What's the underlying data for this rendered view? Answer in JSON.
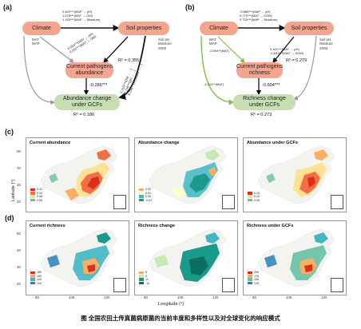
{
  "panel_a": {
    "letter": "(a)",
    "climate": "Climate",
    "soil": "Soil properties",
    "current": "Current pathogens\nabundance",
    "change": "Abundance change\nunder GCFs",
    "climate_side": "MAT\nMAP",
    "soil_side": "Soil pH\nMoisture\nSOM",
    "coef_top": "0.402***(MAP → pH)\n1.676***(MAT → OM)\n1.155***(MAP → Moisture)",
    "coef_left": "0.534***(MAT → pH)\n0.291***(MAT → OM)",
    "coef_right": "0.315***(OM → ...)\n-0.150***(pH → ...)\n-0.298***(Moisture → ...)",
    "coef_mid": "-0.286***",
    "r2_current": "R² = 0.355",
    "r2_change": "R² = 0.186"
  },
  "panel_b": {
    "letter": "(b)",
    "climate": "Climate",
    "soil": "Soil properties",
    "current": "Current pathogens\nrichness",
    "change": "Richness change\nunder GCFs",
    "climate_side": "MAT\nMAP",
    "soil_side": "Soil pH\nMoisture\nSOM",
    "coef_top": "-0.885***(MAP → pH)\n0.770***(MAT → SOM)\n0.733***(MAP → Moisture)",
    "coef_soil_cur": "0.401***(MAT → pH)\n-0.831***(MAT → SOM)",
    "coef_clim_cur": "-0.594**(MAT)",
    "coef_clim_chg": "-0.210**(MAT)",
    "coef_mid": "-0.604***",
    "r2_current": "R² = 0.279",
    "r2_change": "R² = 0.273"
  },
  "panel_c": {
    "letter": "(c)",
    "maps": [
      {
        "title": "Current abundance",
        "legend": [
          "0.12",
          "0.10",
          "0.08",
          "0.06"
        ]
      },
      {
        "title": "Abundance change",
        "legend": [
          "0.02",
          "0.01",
          "0.00",
          "-0.01"
        ]
      },
      {
        "title": "Abundance under GCFs",
        "legend": [
          "0.15",
          "0.10",
          "0.05"
        ]
      }
    ]
  },
  "panel_d": {
    "letter": "(d)",
    "maps": [
      {
        "title": "Current richness",
        "legend": [
          "180",
          "160",
          "140",
          "120"
        ]
      },
      {
        "title": "Richness change",
        "legend": [
          "5",
          "0",
          "-5",
          "-10"
        ]
      },
      {
        "title": "Richness under GCFs",
        "legend": [
          "200",
          "175",
          "150",
          "125"
        ]
      }
    ]
  },
  "axes": {
    "ylabel": "Latitude (°)",
    "xlabel": "Longitude (°)",
    "lat_ticks_c": [
      "50",
      "40",
      "30",
      "20"
    ],
    "lat_ticks_d": [
      "50",
      "40",
      "30",
      "20"
    ],
    "lon_ticks": [
      "80",
      "100",
      "120"
    ]
  },
  "caption": "图  全国农田土传真菌病原菌的当前丰度和多样性以及对全球变化的响应模式",
  "colors": {
    "node_pink": "#f4a58f",
    "node_green": "#c6deb2",
    "arrow_black": "#111111",
    "arrow_grey": "#9a9a9a",
    "arrow_green": "#7fbf4d",
    "map_red": "#d7301f",
    "map_yellow": "#fee08b",
    "map_teal": "#1a9a8a",
    "map_blue": "#2c7fb8"
  }
}
